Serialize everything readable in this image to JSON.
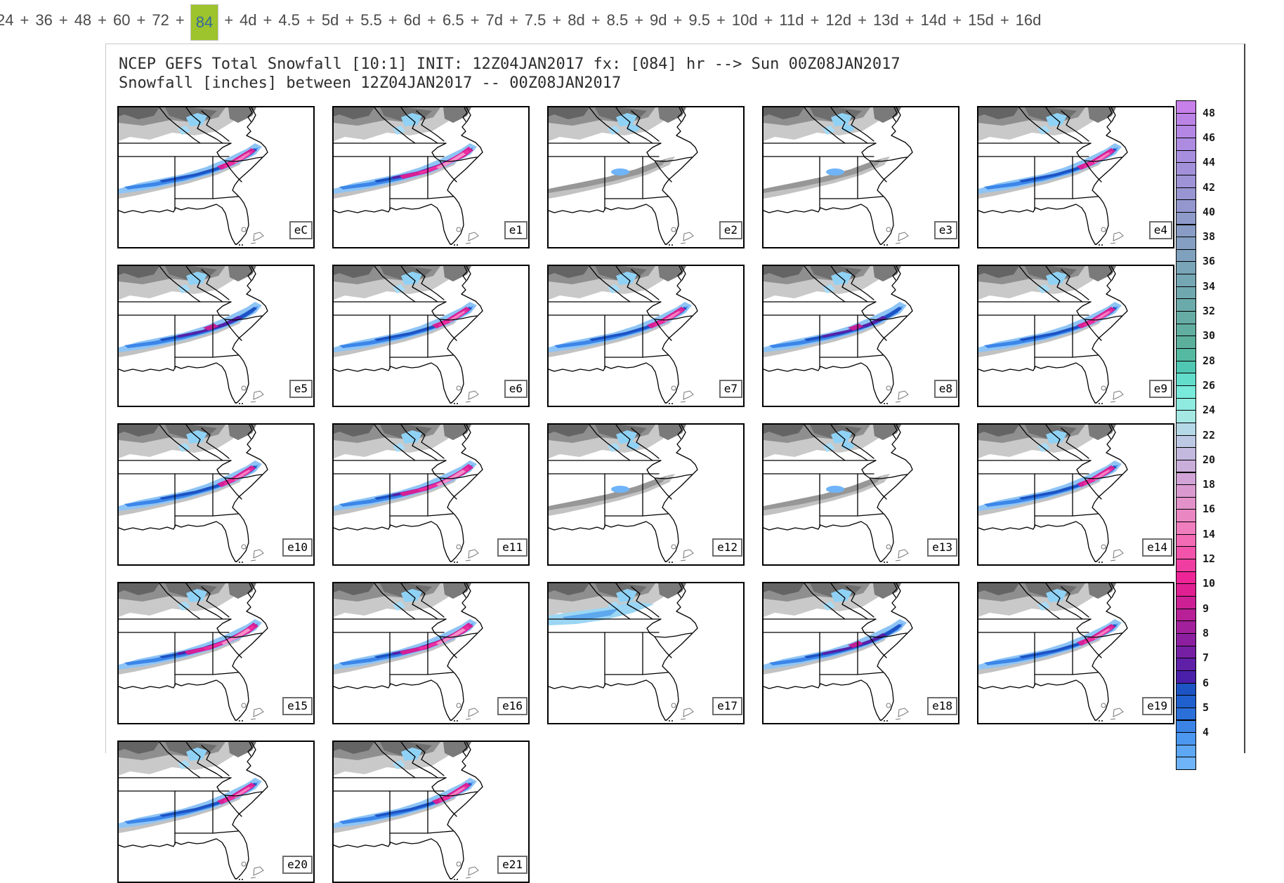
{
  "nav": {
    "items": [
      "24",
      "36",
      "48",
      "60",
      "72",
      "84",
      "4d",
      "4.5",
      "5d",
      "5.5",
      "6d",
      "6.5",
      "7d",
      "7.5",
      "8d",
      "8.5",
      "9d",
      "9.5",
      "10d",
      "11d",
      "12d",
      "13d",
      "14d",
      "15d",
      "16d"
    ],
    "active_item": "84",
    "separator": "+",
    "text_color": "#4a4a4a",
    "active_bg": "#9dc42c",
    "active_text_color": "#36699c"
  },
  "plot": {
    "title_line1": "NCEP GEFS Total Snowfall [10:1] INIT: 12Z04JAN2017 fx: [084] hr --> Sun 00Z08JAN2017",
    "title_line2": "Snowfall [inches] between 12Z04JAN2017 -- 00Z08JAN2017",
    "members": [
      {
        "label": "eC",
        "tier": "pink"
      },
      {
        "label": "e1",
        "tier": "pink-large"
      },
      {
        "label": "e2",
        "tier": "gray"
      },
      {
        "label": "e3",
        "tier": "gray"
      },
      {
        "label": "e4",
        "tier": "pink"
      },
      {
        "label": "e5",
        "tier": "blue"
      },
      {
        "label": "e6",
        "tier": "pink"
      },
      {
        "label": "e7",
        "tier": "pink"
      },
      {
        "label": "e8",
        "tier": "blue"
      },
      {
        "label": "e9",
        "tier": "pink"
      },
      {
        "label": "e10",
        "tier": "pink"
      },
      {
        "label": "e11",
        "tier": "pink-large"
      },
      {
        "label": "e12",
        "tier": "gray"
      },
      {
        "label": "e13",
        "tier": "gray"
      },
      {
        "label": "e14",
        "tier": "pink"
      },
      {
        "label": "e15",
        "tier": "pink-large"
      },
      {
        "label": "e16",
        "tier": "pink-large"
      },
      {
        "label": "e17",
        "tier": "gray-cyan"
      },
      {
        "label": "e18",
        "tier": "blue"
      },
      {
        "label": "e19",
        "tier": "pink"
      },
      {
        "label": "e20",
        "tier": "pink"
      },
      {
        "label": "e21",
        "tier": "pink"
      }
    ],
    "colorbar": {
      "tick_labels": [
        48,
        46,
        44,
        42,
        40,
        38,
        36,
        34,
        32,
        30,
        28,
        26,
        24,
        22,
        20,
        18,
        16,
        14,
        12,
        10,
        9,
        8,
        7,
        6,
        5,
        4
      ],
      "cell_colors": [
        "#c77fe9",
        "#bc83e7",
        "#b487e4",
        "#ad8be1",
        "#a78ede",
        "#a291da",
        "#9d93d6",
        "#9895d2",
        "#9397ce",
        "#8e9aca",
        "#899cc6",
        "#849fc1",
        "#7fa1bd",
        "#7aa4b8",
        "#75a6b4",
        "#70a8af",
        "#6baaaa",
        "#66aca5",
        "#61aea0",
        "#5cb09b",
        "#55b9a2",
        "#50c7b2",
        "#63ddcb",
        "#79e9db",
        "#8feae0",
        "#a5e7e3",
        "#b4d8e6",
        "#bdc9e4",
        "#c3b9df",
        "#caaeda",
        "#d1a3d6",
        "#da9ad0",
        "#e291c9",
        "#ea87c3",
        "#f07dbd",
        "#f36ab5",
        "#f254ab",
        "#f03da1",
        "#ee2597",
        "#e01f92",
        "#cc2094",
        "#b72097",
        "#a2209b",
        "#8c1fa0",
        "#761fa4",
        "#601fa7",
        "#4a1faa",
        "#1d54c3",
        "#1f60ce",
        "#2b6fd9",
        "#3b84e6",
        "#4c97ef",
        "#5da7f4",
        "#6fb4f8"
      ]
    }
  }
}
